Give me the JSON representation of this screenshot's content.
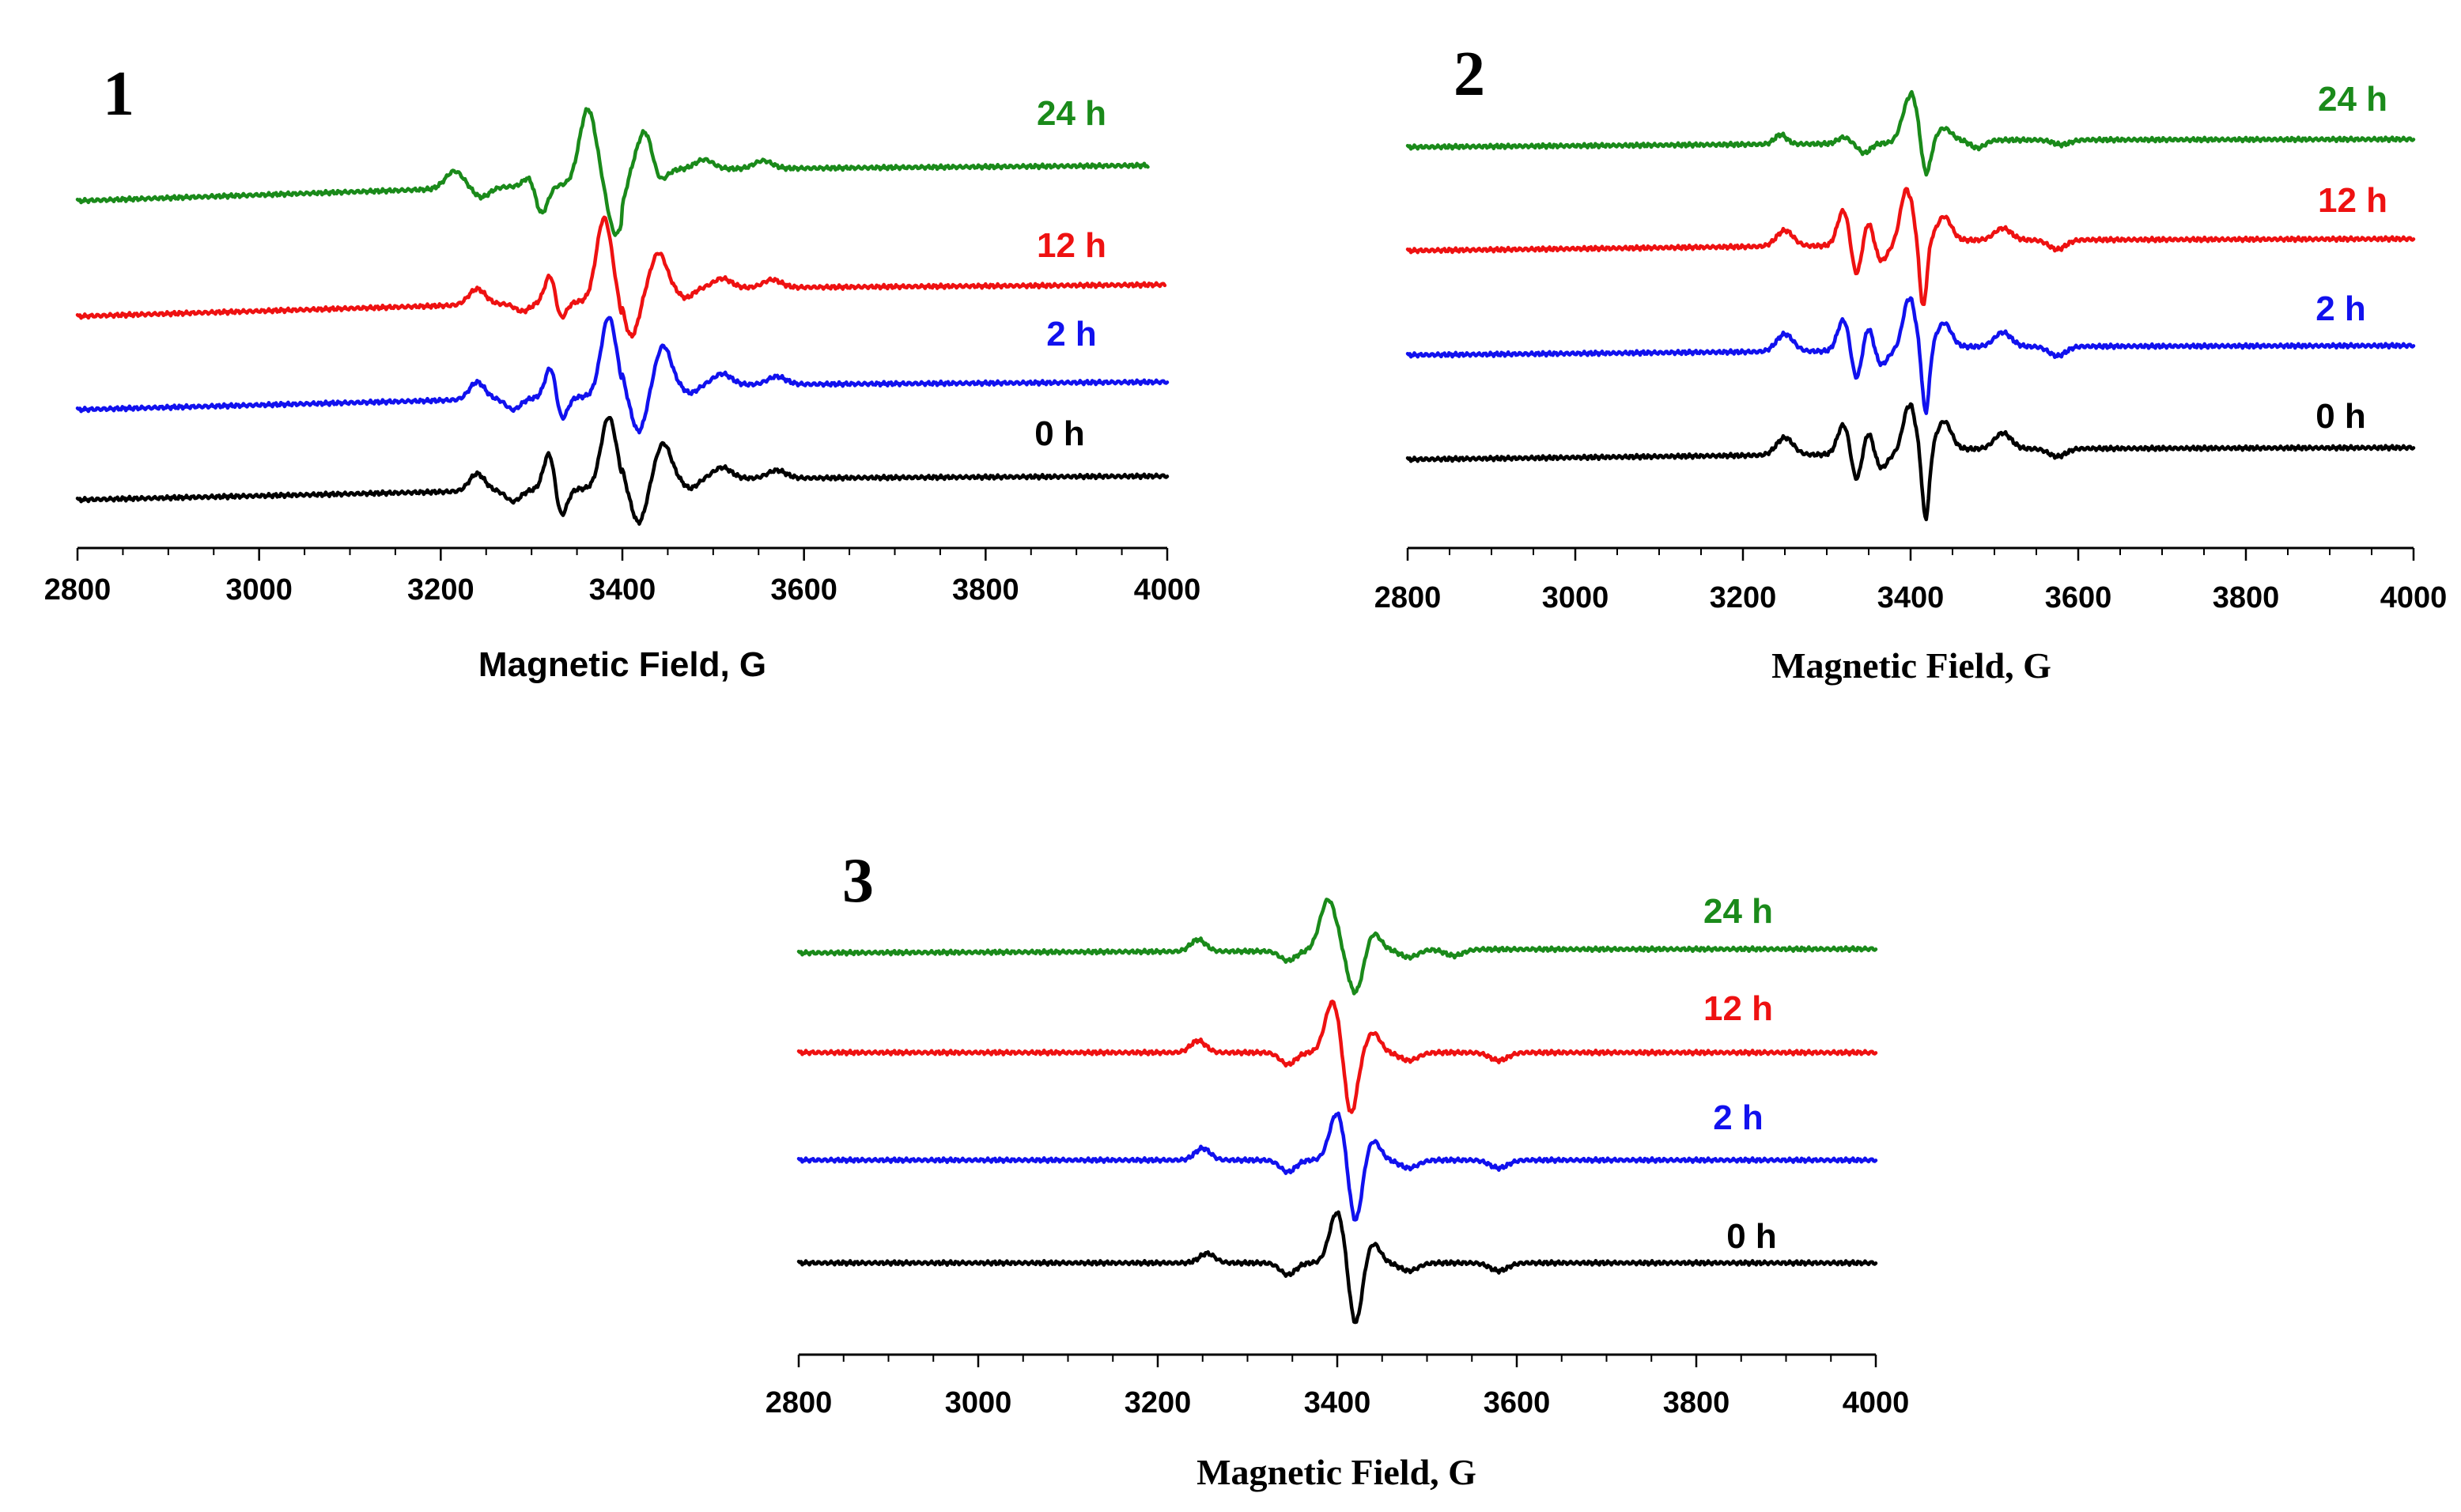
{
  "colors": {
    "24 h": "#1a8a1a",
    "12 h": "#ee1111",
    "2 h": "#1111ee",
    "0 h": "#000000"
  },
  "chart_data": [
    {
      "type": "line",
      "panel": "1",
      "xlabel": "Magnetic Field, G",
      "xlim": [
        2800,
        4000
      ],
      "xticks": [
        2800,
        3000,
        3200,
        3400,
        3600,
        3800,
        4000
      ],
      "series": [
        {
          "name": "24 h",
          "values": []
        },
        {
          "name": "12 h",
          "values": []
        },
        {
          "name": "2 h",
          "values": []
        },
        {
          "name": "0 h",
          "values": []
        }
      ]
    },
    {
      "type": "line",
      "panel": "2",
      "xlabel": "Magnetic Field, G",
      "xlim": [
        2800,
        4000
      ],
      "xticks": [
        2800,
        3000,
        3200,
        3400,
        3600,
        3800,
        4000
      ],
      "series": [
        {
          "name": "24 h",
          "values": []
        },
        {
          "name": "12 h",
          "values": []
        },
        {
          "name": "2 h",
          "values": []
        },
        {
          "name": "0 h",
          "values": []
        }
      ]
    },
    {
      "type": "line",
      "panel": "3",
      "xlabel": "Magnetic Field, G",
      "xlim": [
        2800,
        4000
      ],
      "xticks": [
        2800,
        3000,
        3200,
        3400,
        3600,
        3800,
        4000
      ],
      "series": [
        {
          "name": "24 h",
          "values": []
        },
        {
          "name": "12 h",
          "values": []
        },
        {
          "name": "2 h",
          "values": []
        },
        {
          "name": "0 h",
          "values": []
        }
      ]
    }
  ]
}
